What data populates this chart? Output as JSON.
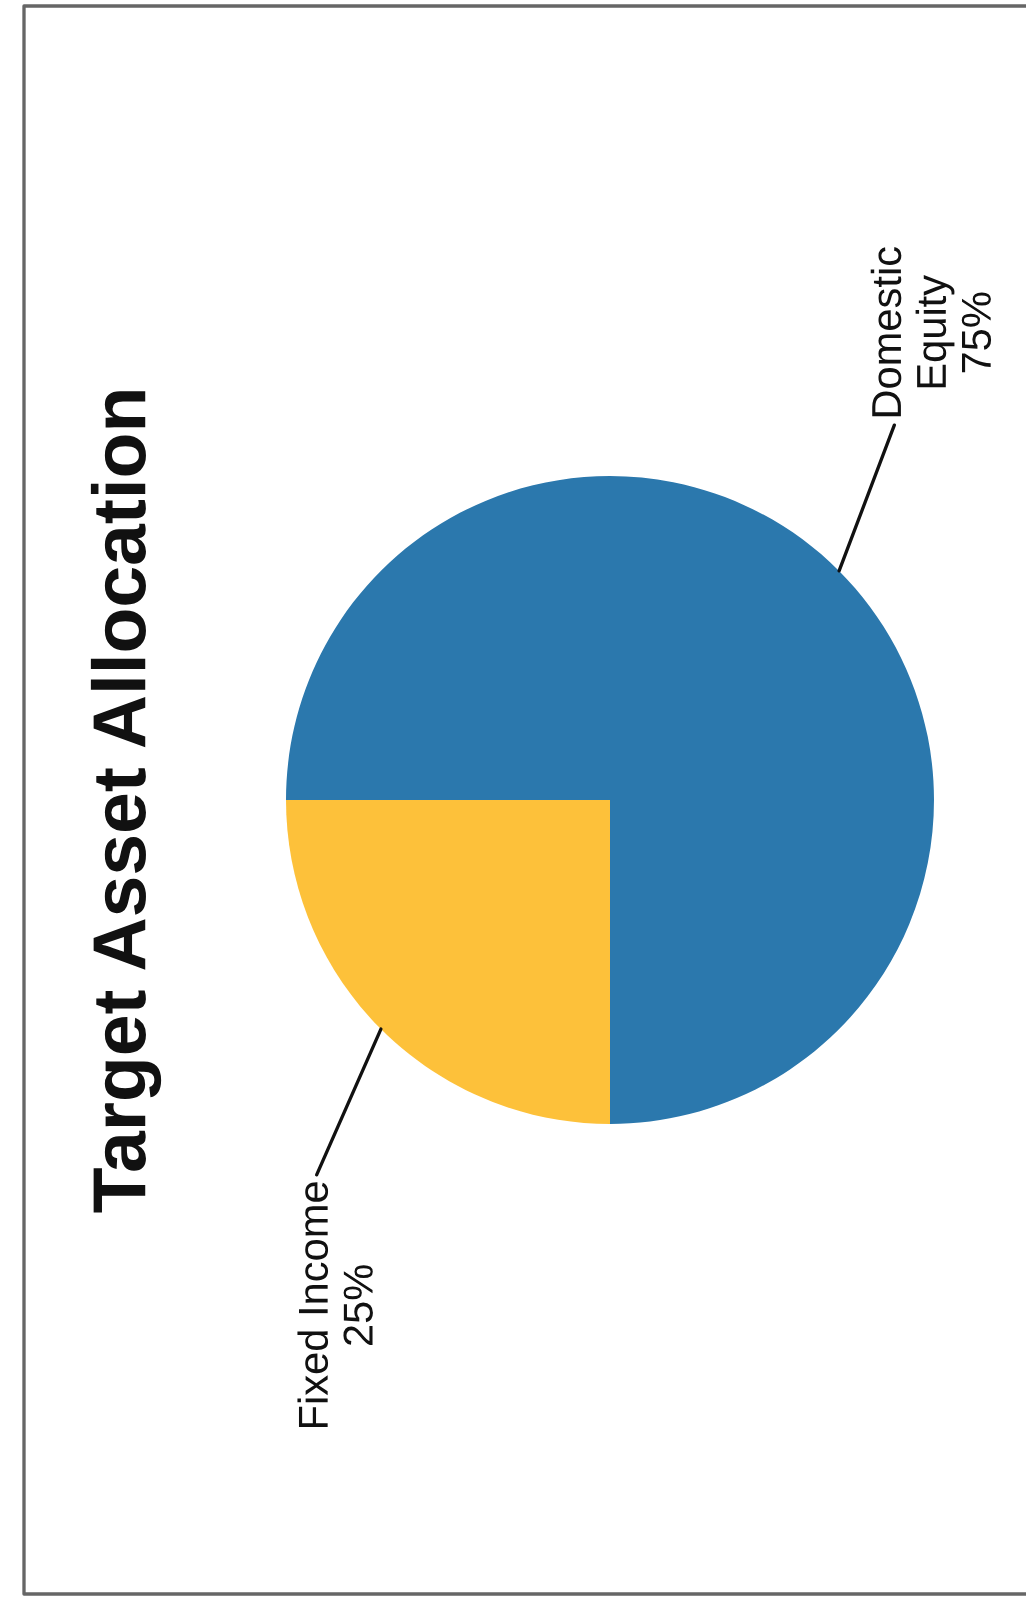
{
  "chart_data": {
    "type": "pie",
    "title": "Target Asset Allocation",
    "categories": [
      "Domestic Equity",
      "Fixed Income"
    ],
    "values": [
      75,
      25
    ],
    "colors": [
      "#2b78ad",
      "#fdc13a"
    ],
    "value_labels": [
      "75%",
      "25%"
    ]
  }
}
